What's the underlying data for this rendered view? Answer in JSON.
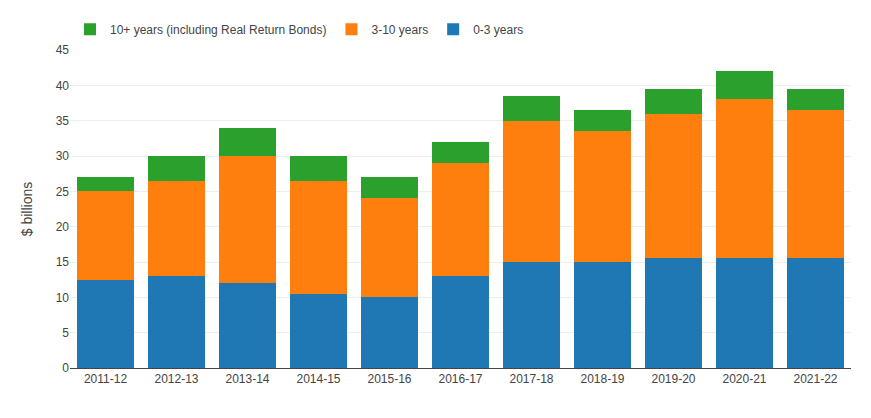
{
  "chart_data": {
    "type": "bar",
    "stacked": true,
    "categories": [
      "2011-12",
      "2012-13",
      "2013-14",
      "2014-15",
      "2015-16",
      "2016-17",
      "2017-18",
      "2018-19",
      "2019-20",
      "2020-21",
      "2021-22"
    ],
    "series": [
      {
        "name": "0-3 years",
        "values": [
          12.5,
          13.0,
          12.0,
          10.5,
          10.0,
          13.0,
          15.0,
          15.0,
          15.5,
          15.5,
          15.5
        ]
      },
      {
        "name": "3-10 years",
        "values": [
          12.5,
          13.5,
          18.0,
          16.0,
          14.0,
          16.0,
          20.0,
          18.5,
          20.5,
          22.5,
          21.0
        ]
      },
      {
        "name": "10+ years (including Real Return Bonds)",
        "values": [
          2.0,
          3.5,
          4.0,
          3.5,
          3.0,
          3.0,
          3.5,
          3.0,
          3.5,
          4.0,
          3.0
        ]
      }
    ],
    "ylabel": "$ billions",
    "ylim": [
      0,
      45
    ],
    "yticks": [
      0,
      5,
      10,
      15,
      20,
      25,
      30,
      35,
      40,
      45
    ],
    "grid": true,
    "legend": "top"
  }
}
